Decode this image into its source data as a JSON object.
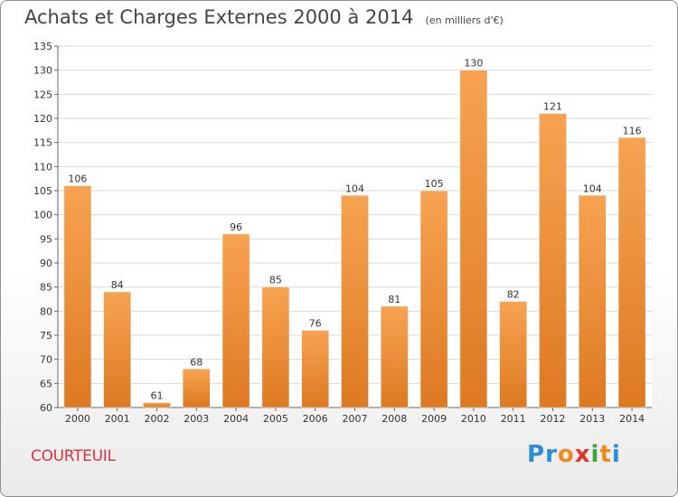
{
  "chart_data": {
    "type": "bar",
    "title": "Achats et Charges Externes 2000 à 2014",
    "subtitle": "(en milliers d'€)",
    "categories": [
      "2000",
      "2001",
      "2002",
      "2003",
      "2004",
      "2005",
      "2006",
      "2007",
      "2008",
      "2009",
      "2010",
      "2011",
      "2012",
      "2013",
      "2014"
    ],
    "values": [
      106,
      84,
      61,
      68,
      96,
      85,
      76,
      104,
      81,
      105,
      130,
      82,
      121,
      104,
      116
    ],
    "ylim": [
      60,
      135
    ],
    "yticks": [
      60,
      65,
      70,
      75,
      80,
      85,
      90,
      95,
      100,
      105,
      110,
      115,
      120,
      125,
      130,
      135
    ],
    "xlabel": "",
    "ylabel": "",
    "grid": true,
    "bar_color": "#f0923a"
  },
  "footer": {
    "commune": "COURTEUIL",
    "brand_letters": [
      {
        "ch": "P",
        "color": "#2a8fd6"
      },
      {
        "ch": "r",
        "color": "#2a8fd6"
      },
      {
        "ch": "o",
        "color": "#f08a1c"
      },
      {
        "ch": "x",
        "color": "#e4342b"
      },
      {
        "ch": "i",
        "color": "#3aa73a"
      },
      {
        "ch": "t",
        "color": "#f08a1c"
      },
      {
        "ch": "i",
        "color": "#2a8fd6"
      }
    ]
  }
}
